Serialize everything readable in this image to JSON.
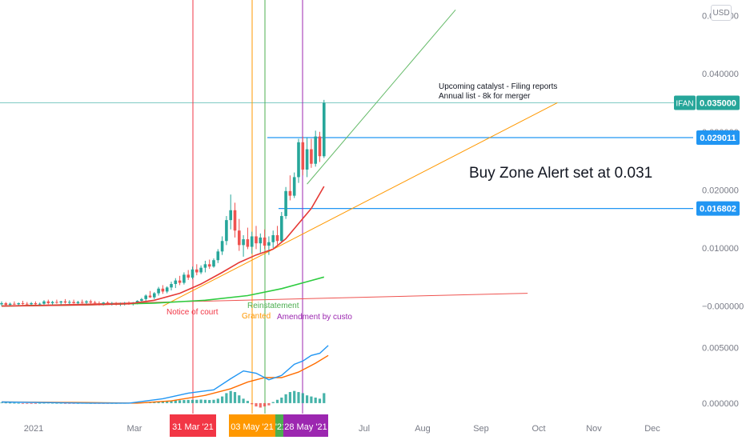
{
  "currency_button": "USD",
  "colors": {
    "up": "#26a69a",
    "down": "#ef5350",
    "ma_red": "#e53935",
    "ma_green": "#2ecc40",
    "macd_blue": "#2196f3",
    "signal_orange": "#ff6d00",
    "hline_blue": "#2196f3",
    "price_teal": "#26a69a"
  },
  "chart_data": [
    {
      "type": "candlestick",
      "symbol": "IFAN",
      "x_axis_labels": [
        "2021",
        "Mar",
        "Jul",
        "Aug",
        "Sep",
        "Oct",
        "Nov",
        "Dec"
      ],
      "y_axis_labels": [
        "0.050000",
        "0.040000",
        "0.030000",
        "0.020000",
        "0.010000",
        "−0.000000"
      ],
      "ylim": [
        -0.0013,
        0.0527
      ],
      "price_label": {
        "symbol": "IFAN",
        "value": "0.035000"
      },
      "horizontal_lines": [
        {
          "value": 0.029011,
          "label": "0.029011"
        },
        {
          "value": 0.016802,
          "label": "0.016802"
        }
      ],
      "vertical_events": [
        {
          "date_label": "31 Mar '21",
          "color": "#f23645",
          "annotation": "Notice of court"
        },
        {
          "date_label": "03 May '21",
          "color": "#ff9800",
          "annotation": "Granted"
        },
        {
          "date_label": "'21",
          "color": "#4caf50",
          "annotation": "Reinstatement"
        },
        {
          "date_label": "28 May '21",
          "color": "#9c27b0",
          "annotation": "Amendment by custo"
        }
      ],
      "text_notes": [
        "Upcoming catalyst - Filing reports",
        "Annual list - 8k for merger",
        "Buy Zone Alert set at 0.031"
      ],
      "candles": [
        {
          "o": 0.0003,
          "h": 0.0008,
          "l": 0.0,
          "c": 0.0005
        },
        {
          "o": 0.0005,
          "h": 0.0007,
          "l": 0.0001,
          "c": 0.0002
        },
        {
          "o": 0.0002,
          "h": 0.0006,
          "l": 0.0,
          "c": 0.0004
        },
        {
          "o": 0.0004,
          "h": 0.0008,
          "l": 0.0002,
          "c": 0.0003
        },
        {
          "o": 0.0003,
          "h": 0.0006,
          "l": 0.0,
          "c": 0.0005
        },
        {
          "o": 0.0005,
          "h": 0.0009,
          "l": 0.0002,
          "c": 0.0004
        },
        {
          "o": 0.0004,
          "h": 0.0007,
          "l": 0.0001,
          "c": 0.0003
        },
        {
          "o": 0.0003,
          "h": 0.0007,
          "l": 0.0,
          "c": 0.0005
        },
        {
          "o": 0.0005,
          "h": 0.0008,
          "l": 0.0002,
          "c": 0.0003
        },
        {
          "o": 0.0003,
          "h": 0.0006,
          "l": 0.0,
          "c": 0.0004
        },
        {
          "o": 0.0004,
          "h": 0.001,
          "l": 0.0002,
          "c": 0.0008
        },
        {
          "o": 0.0008,
          "h": 0.0011,
          "l": 0.0003,
          "c": 0.0005
        },
        {
          "o": 0.0005,
          "h": 0.0009,
          "l": 0.0002,
          "c": 0.0007
        },
        {
          "o": 0.0007,
          "h": 0.0011,
          "l": 0.0004,
          "c": 0.0006
        },
        {
          "o": 0.0006,
          "h": 0.0009,
          "l": 0.0002,
          "c": 0.0008
        },
        {
          "o": 0.0008,
          "h": 0.0012,
          "l": 0.0004,
          "c": 0.0006
        },
        {
          "o": 0.0006,
          "h": 0.001,
          "l": 0.0003,
          "c": 0.0007
        },
        {
          "o": 0.0007,
          "h": 0.0011,
          "l": 0.0004,
          "c": 0.0005
        },
        {
          "o": 0.0005,
          "h": 0.0009,
          "l": 0.0002,
          "c": 0.0007
        },
        {
          "o": 0.0007,
          "h": 0.0011,
          "l": 0.0004,
          "c": 0.0006
        },
        {
          "o": 0.0006,
          "h": 0.001,
          "l": 0.0003,
          "c": 0.0008
        },
        {
          "o": 0.0008,
          "h": 0.0011,
          "l": 0.0004,
          "c": 0.0006
        },
        {
          "o": 0.0006,
          "h": 0.0009,
          "l": 0.0002,
          "c": 0.0005
        },
        {
          "o": 0.0005,
          "h": 0.0008,
          "l": 0.0001,
          "c": 0.0004
        },
        {
          "o": 0.0004,
          "h": 0.0007,
          "l": 0.0001,
          "c": 0.0006
        },
        {
          "o": 0.0006,
          "h": 0.0008,
          "l": 0.0002,
          "c": 0.0004
        },
        {
          "o": 0.0004,
          "h": 0.0007,
          "l": 0.0001,
          "c": 0.0005
        },
        {
          "o": 0.0005,
          "h": 0.0007,
          "l": 0.0001,
          "c": 0.0003
        },
        {
          "o": 0.0003,
          "h": 0.0006,
          "l": 0.0,
          "c": 0.0004
        },
        {
          "o": 0.0004,
          "h": 0.0007,
          "l": 0.0001,
          "c": 0.0005
        },
        {
          "o": 0.0005,
          "h": 0.0008,
          "l": 0.0002,
          "c": 0.0004
        },
        {
          "o": 0.0004,
          "h": 0.0007,
          "l": 0.0001,
          "c": 0.0006
        },
        {
          "o": 0.0006,
          "h": 0.001,
          "l": 0.0003,
          "c": 0.0009
        },
        {
          "o": 0.0009,
          "h": 0.0014,
          "l": 0.0006,
          "c": 0.0012
        },
        {
          "o": 0.0012,
          "h": 0.002,
          "l": 0.0009,
          "c": 0.0018
        },
        {
          "o": 0.0018,
          "h": 0.0026,
          "l": 0.0014,
          "c": 0.0015
        },
        {
          "o": 0.0015,
          "h": 0.0024,
          "l": 0.0012,
          "c": 0.0022
        },
        {
          "o": 0.0022,
          "h": 0.0033,
          "l": 0.0018,
          "c": 0.003
        },
        {
          "o": 0.003,
          "h": 0.0036,
          "l": 0.0021,
          "c": 0.0025
        },
        {
          "o": 0.0025,
          "h": 0.0034,
          "l": 0.0022,
          "c": 0.0032
        },
        {
          "o": 0.0032,
          "h": 0.0042,
          "l": 0.0027,
          "c": 0.0038
        },
        {
          "o": 0.0038,
          "h": 0.0048,
          "l": 0.0031,
          "c": 0.0044
        },
        {
          "o": 0.0044,
          "h": 0.0052,
          "l": 0.0036,
          "c": 0.004
        },
        {
          "o": 0.004,
          "h": 0.0058,
          "l": 0.0037,
          "c": 0.0054
        },
        {
          "o": 0.0054,
          "h": 0.0062,
          "l": 0.0045,
          "c": 0.0049
        },
        {
          "o": 0.0049,
          "h": 0.0068,
          "l": 0.0046,
          "c": 0.0063
        },
        {
          "o": 0.0063,
          "h": 0.0072,
          "l": 0.0053,
          "c": 0.0058
        },
        {
          "o": 0.0058,
          "h": 0.007,
          "l": 0.0055,
          "c": 0.0066
        },
        {
          "o": 0.0066,
          "h": 0.0078,
          "l": 0.0058,
          "c": 0.0072
        },
        {
          "o": 0.0072,
          "h": 0.008,
          "l": 0.0064,
          "c": 0.0068
        },
        {
          "o": 0.0068,
          "h": 0.0082,
          "l": 0.0066,
          "c": 0.0079
        },
        {
          "o": 0.0079,
          "h": 0.0098,
          "l": 0.0074,
          "c": 0.0094
        },
        {
          "o": 0.0094,
          "h": 0.012,
          "l": 0.0088,
          "c": 0.0112
        },
        {
          "o": 0.0112,
          "h": 0.0155,
          "l": 0.0105,
          "c": 0.0148
        },
        {
          "o": 0.0148,
          "h": 0.0192,
          "l": 0.0132,
          "c": 0.0165
        },
        {
          "o": 0.0165,
          "h": 0.0178,
          "l": 0.0118,
          "c": 0.013
        },
        {
          "o": 0.013,
          "h": 0.015,
          "l": 0.0095,
          "c": 0.0105
        },
        {
          "o": 0.0105,
          "h": 0.0122,
          "l": 0.0085,
          "c": 0.0115
        },
        {
          "o": 0.0115,
          "h": 0.0135,
          "l": 0.0098,
          "c": 0.0102
        },
        {
          "o": 0.0102,
          "h": 0.0128,
          "l": 0.009,
          "c": 0.012
        },
        {
          "o": 0.012,
          "h": 0.0138,
          "l": 0.0098,
          "c": 0.0108
        },
        {
          "o": 0.0108,
          "h": 0.0125,
          "l": 0.0092,
          "c": 0.0118
        },
        {
          "o": 0.0118,
          "h": 0.0132,
          "l": 0.0098,
          "c": 0.0104
        },
        {
          "o": 0.0104,
          "h": 0.012,
          "l": 0.0088,
          "c": 0.011
        },
        {
          "o": 0.011,
          "h": 0.013,
          "l": 0.01,
          "c": 0.0122
        },
        {
          "o": 0.0122,
          "h": 0.0138,
          "l": 0.0106,
          "c": 0.0112
        },
        {
          "o": 0.0112,
          "h": 0.0162,
          "l": 0.011,
          "c": 0.0155
        },
        {
          "o": 0.0155,
          "h": 0.0205,
          "l": 0.015,
          "c": 0.0198
        },
        {
          "o": 0.0198,
          "h": 0.0225,
          "l": 0.0182,
          "c": 0.019
        },
        {
          "o": 0.019,
          "h": 0.023,
          "l": 0.0186,
          "c": 0.0222
        },
        {
          "o": 0.0222,
          "h": 0.0288,
          "l": 0.0212,
          "c": 0.0282
        },
        {
          "o": 0.0282,
          "h": 0.0292,
          "l": 0.0225,
          "c": 0.0235
        },
        {
          "o": 0.0235,
          "h": 0.029,
          "l": 0.0222,
          "c": 0.027
        },
        {
          "o": 0.027,
          "h": 0.0288,
          "l": 0.0238,
          "c": 0.0245
        },
        {
          "o": 0.0245,
          "h": 0.0302,
          "l": 0.024,
          "c": 0.0292
        },
        {
          "o": 0.0292,
          "h": 0.03,
          "l": 0.0248,
          "c": 0.0258
        },
        {
          "o": 0.0258,
          "h": 0.0355,
          "l": 0.0255,
          "c": 0.035
        }
      ],
      "ma_red": [
        {
          "i": 0,
          "v": 0.0
        },
        {
          "i": 20,
          "v": 0.0002
        },
        {
          "i": 30,
          "v": 0.0004
        },
        {
          "i": 36,
          "v": 0.001
        },
        {
          "i": 42,
          "v": 0.0022
        },
        {
          "i": 47,
          "v": 0.0038
        },
        {
          "i": 52,
          "v": 0.0058
        },
        {
          "i": 56,
          "v": 0.0075
        },
        {
          "i": 60,
          "v": 0.0088
        },
        {
          "i": 64,
          "v": 0.0098
        },
        {
          "i": 67,
          "v": 0.0116
        },
        {
          "i": 70,
          "v": 0.0142
        },
        {
          "i": 73,
          "v": 0.0168
        },
        {
          "i": 76,
          "v": 0.0206
        }
      ],
      "ma_green": [
        {
          "i": 0,
          "v": 0.0
        },
        {
          "i": 20,
          "v": 0.0002
        },
        {
          "i": 36,
          "v": 0.0005
        },
        {
          "i": 48,
          "v": 0.001
        },
        {
          "i": 58,
          "v": 0.0018
        },
        {
          "i": 66,
          "v": 0.003
        },
        {
          "i": 72,
          "v": 0.0042
        },
        {
          "i": 76,
          "v": 0.005
        }
      ],
      "trendlines": [
        {
          "name": "red-support",
          "color": "#ef5350",
          "from": {
            "i": 0,
            "v": 0.0
          },
          "to": {
            "i": 124,
            "v": 0.0022
          }
        },
        {
          "name": "orange-trend",
          "color": "#ff9800",
          "from": {
            "i": 38,
            "v": 0.0
          },
          "to": {
            "i": 131,
            "v": 0.035
          }
        },
        {
          "name": "green-trend",
          "color": "#66bb6a",
          "from": {
            "i": 72,
            "v": 0.021
          },
          "to": {
            "i": 107,
            "v": 0.051
          }
        }
      ]
    },
    {
      "type": "macd",
      "y_axis_labels": [
        "0.005000",
        "0.000000"
      ],
      "ylim": [
        -0.0008,
        0.0062
      ],
      "macd": [
        {
          "i": 0,
          "v": 0.0001
        },
        {
          "i": 10,
          "v": 5e-05
        },
        {
          "i": 20,
          "v": 0.0
        },
        {
          "i": 30,
          "v": 0.0
        },
        {
          "i": 38,
          "v": 0.0004
        },
        {
          "i": 44,
          "v": 0.0009
        },
        {
          "i": 50,
          "v": 0.0012
        },
        {
          "i": 54,
          "v": 0.0022
        },
        {
          "i": 57,
          "v": 0.0029
        },
        {
          "i": 60,
          "v": 0.0027
        },
        {
          "i": 63,
          "v": 0.0021
        },
        {
          "i": 66,
          "v": 0.0025
        },
        {
          "i": 69,
          "v": 0.0035
        },
        {
          "i": 71,
          "v": 0.0038
        },
        {
          "i": 73,
          "v": 0.0043
        },
        {
          "i": 75,
          "v": 0.0045
        },
        {
          "i": 77,
          "v": 0.0052
        }
      ],
      "signal": [
        {
          "i": 0,
          "v": 0.0001
        },
        {
          "i": 20,
          "v": 5e-05
        },
        {
          "i": 32,
          "v": 0.0
        },
        {
          "i": 40,
          "v": 0.0002
        },
        {
          "i": 48,
          "v": 0.0007
        },
        {
          "i": 54,
          "v": 0.0013
        },
        {
          "i": 58,
          "v": 0.0019
        },
        {
          "i": 62,
          "v": 0.0023
        },
        {
          "i": 66,
          "v": 0.0023
        },
        {
          "i": 70,
          "v": 0.0028
        },
        {
          "i": 74,
          "v": 0.0036
        },
        {
          "i": 77,
          "v": 0.0043
        }
      ],
      "histogram": [
        5e-05,
        4e-05,
        3e-05,
        2e-05,
        1e-05,
        -1e-05,
        -2e-05,
        -2e-05,
        -1e-05,
        1e-05,
        2e-05,
        3e-05,
        2e-05,
        1e-05,
        1e-05,
        -1e-05,
        -2e-05,
        -1e-05,
        0.0,
        1e-05,
        1e-05,
        0.0,
        -1e-05,
        -2e-05,
        -2e-05,
        -1e-05,
        0.0,
        0.0,
        1e-05,
        1e-05,
        2e-05,
        3e-05,
        4e-05,
        6e-05,
        8e-05,
        0.0001,
        0.00012,
        0.00015,
        0.00018,
        0.0002,
        0.00022,
        0.00025,
        0.00026,
        0.00028,
        0.00029,
        0.0003,
        0.0003,
        0.00032,
        0.0003,
        0.00028,
        0.0003,
        0.0004,
        0.0006,
        0.0009,
        0.0011,
        0.001,
        0.0007,
        0.0004,
        0.0002,
        -0.0001,
        -0.0003,
        -0.0004,
        -0.0003,
        -0.0002,
        0.0001,
        0.0003,
        0.0005,
        0.0008,
        0.001,
        0.0011,
        0.001,
        0.0009,
        0.0007,
        0.0006,
        0.0005,
        0.0004,
        0.0009
      ]
    }
  ]
}
